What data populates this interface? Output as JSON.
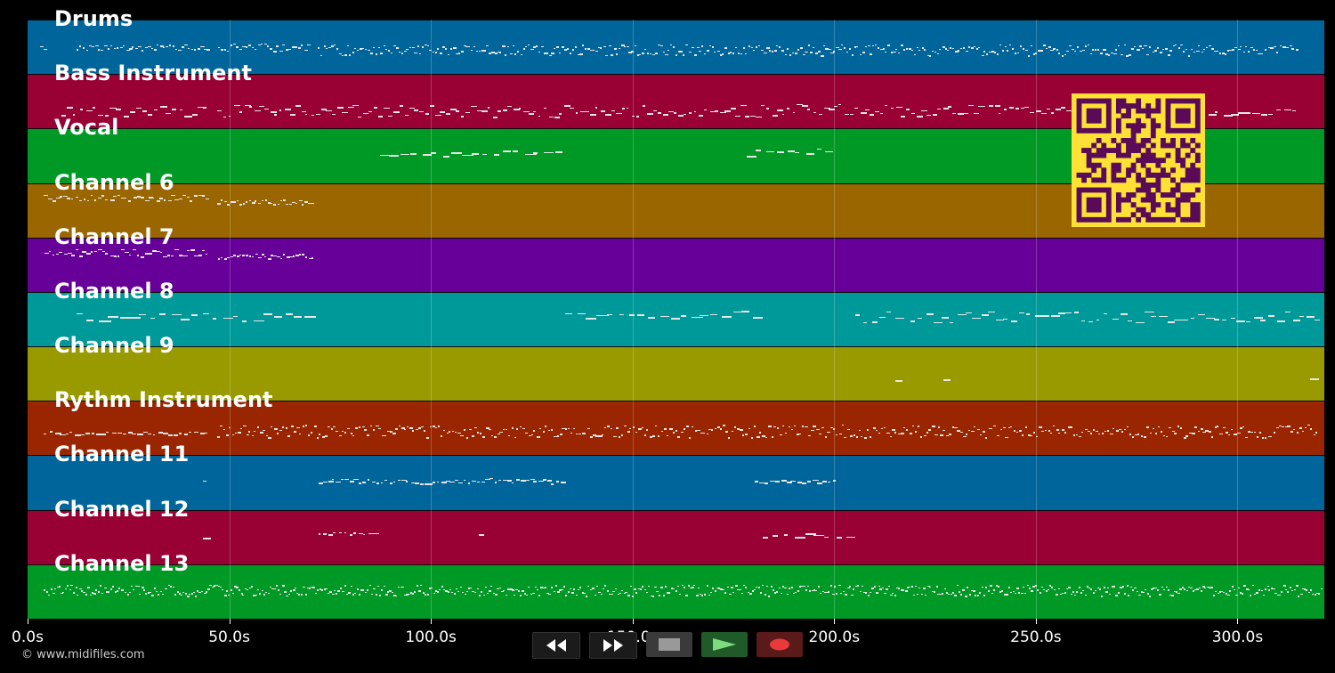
{
  "tracks": [
    {
      "label": "Drums",
      "color": "#00659a"
    },
    {
      "label": "Bass Instrument",
      "color": "#990033"
    },
    {
      "label": "Vocal",
      "color": "#009926"
    },
    {
      "label": "Channel 6",
      "color": "#996600"
    },
    {
      "label": "Channel 7",
      "color": "#660099"
    },
    {
      "label": "Channel 8",
      "color": "#009999"
    },
    {
      "label": "Channel 9",
      "color": "#999900"
    },
    {
      "label": "Rythm Instrument",
      "color": "#992600"
    },
    {
      "label": "Channel 11",
      "color": "#00659a"
    },
    {
      "label": "Channel 12",
      "color": "#990033"
    },
    {
      "label": "Channel 13",
      "color": "#009926"
    }
  ],
  "timeline": {
    "max_seconds": 321.3,
    "ticks": [
      "0.0s",
      "50.0s",
      "100.0s",
      "150.0s",
      "200.0s",
      "250.0s",
      "300.0s"
    ]
  },
  "copyright": "© www.midifiles.com",
  "transport": {
    "rewind_icon": "rewind-icon",
    "forward_icon": "fast-forward-icon",
    "stop_icon": "stop-icon",
    "play_icon": "play-icon",
    "record_icon": "record-icon"
  },
  "qr_code": {
    "color": "#ffe135",
    "module_color": "#5a0b57"
  }
}
